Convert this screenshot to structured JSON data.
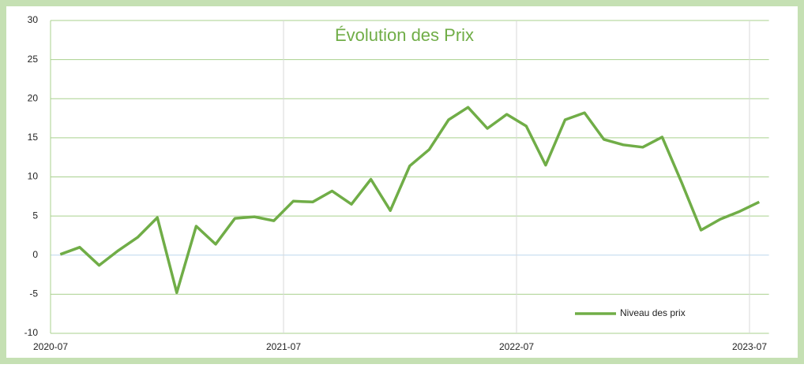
{
  "chart_data": {
    "type": "line",
    "title": "Évolution des Prix",
    "x": [
      "2020-07",
      "2020-08",
      "2020-09",
      "2020-10",
      "2020-11",
      "2020-12",
      "2021-01",
      "2021-02",
      "2021-03",
      "2021-04",
      "2021-05",
      "2021-06",
      "2021-07",
      "2021-08",
      "2021-09",
      "2021-10",
      "2021-11",
      "2021-12",
      "2022-01",
      "2022-02",
      "2022-03",
      "2022-04",
      "2022-05",
      "2022-06",
      "2022-07",
      "2022-08",
      "2022-09",
      "2022-10",
      "2022-11",
      "2022-12",
      "2023-01",
      "2023-02",
      "2023-03",
      "2023-04",
      "2023-05",
      "2023-06",
      "2023-07"
    ],
    "series": [
      {
        "name": "Niveau des prix",
        "color": "#70ad47",
        "values": [
          0.1,
          1.0,
          -1.3,
          0.6,
          2.3,
          4.8,
          -4.8,
          3.7,
          1.4,
          4.7,
          4.9,
          4.4,
          6.9,
          6.8,
          8.2,
          6.5,
          9.7,
          5.7,
          11.4,
          13.5,
          17.3,
          18.9,
          16.2,
          18.0,
          16.5,
          11.5,
          17.3,
          18.2,
          14.8,
          14.1,
          13.8,
          15.1,
          9.3,
          3.2,
          4.6,
          5.6,
          6.8
        ]
      }
    ],
    "xlim": [
      "2020-07",
      "2023-08"
    ],
    "xticks": [
      "2020-07",
      "2021-07",
      "2022-07",
      "2023-07"
    ],
    "ylim": [
      -10,
      30
    ],
    "yticks": [
      -10,
      -5,
      0,
      5,
      10,
      15,
      20,
      25,
      30
    ],
    "grid": true,
    "legend": "lower right"
  }
}
